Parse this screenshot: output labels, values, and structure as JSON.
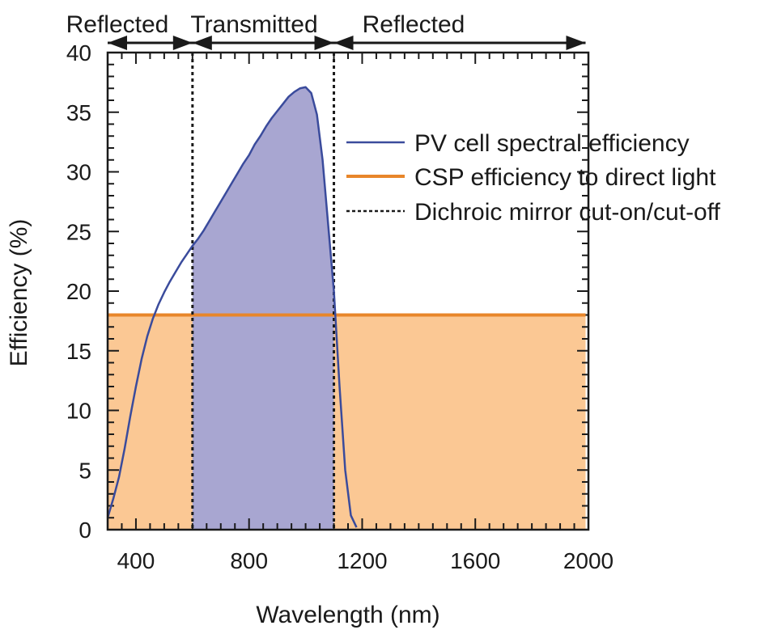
{
  "chart_data": {
    "type": "line",
    "xlabel": "Wavelength (nm)",
    "ylabel": "Efficiency (%)",
    "xlim": [
      300,
      2000
    ],
    "ylim": [
      0,
      40
    ],
    "xticks": [
      400,
      800,
      1200,
      1600,
      2000
    ],
    "yticks": [
      0,
      5,
      10,
      15,
      20,
      25,
      30,
      35,
      40
    ],
    "x_minor_step": 50,
    "y_minor_step": 1,
    "regions": [
      {
        "label": "Reflected",
        "from": 300,
        "to": 600
      },
      {
        "label": "Transmitted",
        "from": 600,
        "to": 1100
      },
      {
        "label": "Reflected",
        "from": 1100,
        "to": 1990
      }
    ],
    "series": [
      {
        "name": "PV cell spectral efficiency",
        "color": "#3a4b9c",
        "fill_between": [
          600,
          1100
        ],
        "fill_color": "#a8a6d1",
        "x": [
          300,
          320,
          340,
          360,
          380,
          400,
          420,
          440,
          460,
          480,
          500,
          520,
          540,
          560,
          580,
          600,
          620,
          640,
          660,
          680,
          700,
          720,
          740,
          760,
          780,
          800,
          820,
          840,
          860,
          880,
          900,
          920,
          940,
          960,
          980,
          1000,
          1020,
          1040,
          1060,
          1080,
          1100,
          1120,
          1140,
          1160,
          1180
        ],
        "values": [
          1.0,
          2.6,
          4.4,
          6.8,
          9.5,
          12.0,
          14.3,
          16.2,
          17.7,
          18.9,
          19.9,
          20.8,
          21.6,
          22.4,
          23.1,
          23.8,
          24.4,
          25.1,
          25.9,
          26.7,
          27.5,
          28.3,
          29.1,
          29.9,
          30.7,
          31.4,
          32.3,
          33.0,
          33.8,
          34.5,
          35.1,
          35.7,
          36.3,
          36.7,
          37.0,
          37.1,
          36.6,
          34.8,
          31.0,
          25.5,
          20.0,
          12.0,
          5.0,
          1.2,
          0.2
        ]
      },
      {
        "name": "CSP efficiency to direct light",
        "color": "#e8862a",
        "fill_color": "#fbc894",
        "x": [
          300,
          1990
        ],
        "values": [
          18,
          18
        ]
      }
    ],
    "vlines": {
      "name": "Dichroic mirror cut-on/cut-off",
      "x": [
        600,
        1100
      ],
      "style": "dotted",
      "color": "#1a1a1a"
    },
    "legend": [
      "PV cell spectral efficiency",
      "CSP efficiency to direct light",
      "Dichroic mirror cut-on/cut-off"
    ],
    "legend_position": "upper-right"
  }
}
